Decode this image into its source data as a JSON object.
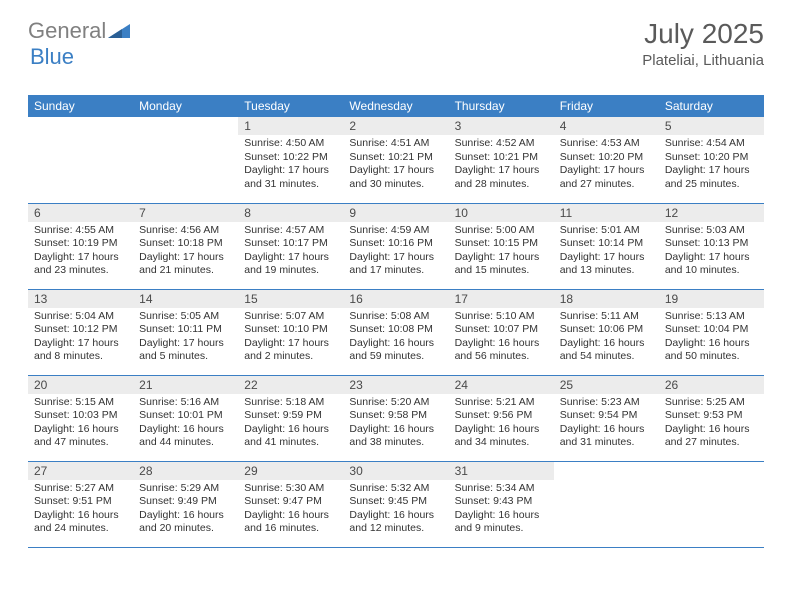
{
  "logo": {
    "text1": "General",
    "text2": "Blue"
  },
  "title": "July 2025",
  "location": "Plateliai, Lithuania",
  "colors": {
    "header_bg": "#3b7fc4",
    "daynum_bg": "#ececec",
    "border": "#3b7fc4",
    "logo_gray": "#808080",
    "logo_blue": "#3b7fc4"
  },
  "day_headers": [
    "Sunday",
    "Monday",
    "Tuesday",
    "Wednesday",
    "Thursday",
    "Friday",
    "Saturday"
  ],
  "weeks": [
    [
      null,
      null,
      {
        "n": "1",
        "sr": "4:50 AM",
        "ss": "10:22 PM",
        "dl": "17 hours and 31 minutes."
      },
      {
        "n": "2",
        "sr": "4:51 AM",
        "ss": "10:21 PM",
        "dl": "17 hours and 30 minutes."
      },
      {
        "n": "3",
        "sr": "4:52 AM",
        "ss": "10:21 PM",
        "dl": "17 hours and 28 minutes."
      },
      {
        "n": "4",
        "sr": "4:53 AM",
        "ss": "10:20 PM",
        "dl": "17 hours and 27 minutes."
      },
      {
        "n": "5",
        "sr": "4:54 AM",
        "ss": "10:20 PM",
        "dl": "17 hours and 25 minutes."
      }
    ],
    [
      {
        "n": "6",
        "sr": "4:55 AM",
        "ss": "10:19 PM",
        "dl": "17 hours and 23 minutes."
      },
      {
        "n": "7",
        "sr": "4:56 AM",
        "ss": "10:18 PM",
        "dl": "17 hours and 21 minutes."
      },
      {
        "n": "8",
        "sr": "4:57 AM",
        "ss": "10:17 PM",
        "dl": "17 hours and 19 minutes."
      },
      {
        "n": "9",
        "sr": "4:59 AM",
        "ss": "10:16 PM",
        "dl": "17 hours and 17 minutes."
      },
      {
        "n": "10",
        "sr": "5:00 AM",
        "ss": "10:15 PM",
        "dl": "17 hours and 15 minutes."
      },
      {
        "n": "11",
        "sr": "5:01 AM",
        "ss": "10:14 PM",
        "dl": "17 hours and 13 minutes."
      },
      {
        "n": "12",
        "sr": "5:03 AM",
        "ss": "10:13 PM",
        "dl": "17 hours and 10 minutes."
      }
    ],
    [
      {
        "n": "13",
        "sr": "5:04 AM",
        "ss": "10:12 PM",
        "dl": "17 hours and 8 minutes."
      },
      {
        "n": "14",
        "sr": "5:05 AM",
        "ss": "10:11 PM",
        "dl": "17 hours and 5 minutes."
      },
      {
        "n": "15",
        "sr": "5:07 AM",
        "ss": "10:10 PM",
        "dl": "17 hours and 2 minutes."
      },
      {
        "n": "16",
        "sr": "5:08 AM",
        "ss": "10:08 PM",
        "dl": "16 hours and 59 minutes."
      },
      {
        "n": "17",
        "sr": "5:10 AM",
        "ss": "10:07 PM",
        "dl": "16 hours and 56 minutes."
      },
      {
        "n": "18",
        "sr": "5:11 AM",
        "ss": "10:06 PM",
        "dl": "16 hours and 54 minutes."
      },
      {
        "n": "19",
        "sr": "5:13 AM",
        "ss": "10:04 PM",
        "dl": "16 hours and 50 minutes."
      }
    ],
    [
      {
        "n": "20",
        "sr": "5:15 AM",
        "ss": "10:03 PM",
        "dl": "16 hours and 47 minutes."
      },
      {
        "n": "21",
        "sr": "5:16 AM",
        "ss": "10:01 PM",
        "dl": "16 hours and 44 minutes."
      },
      {
        "n": "22",
        "sr": "5:18 AM",
        "ss": "9:59 PM",
        "dl": "16 hours and 41 minutes."
      },
      {
        "n": "23",
        "sr": "5:20 AM",
        "ss": "9:58 PM",
        "dl": "16 hours and 38 minutes."
      },
      {
        "n": "24",
        "sr": "5:21 AM",
        "ss": "9:56 PM",
        "dl": "16 hours and 34 minutes."
      },
      {
        "n": "25",
        "sr": "5:23 AM",
        "ss": "9:54 PM",
        "dl": "16 hours and 31 minutes."
      },
      {
        "n": "26",
        "sr": "5:25 AM",
        "ss": "9:53 PM",
        "dl": "16 hours and 27 minutes."
      }
    ],
    [
      {
        "n": "27",
        "sr": "5:27 AM",
        "ss": "9:51 PM",
        "dl": "16 hours and 24 minutes."
      },
      {
        "n": "28",
        "sr": "5:29 AM",
        "ss": "9:49 PM",
        "dl": "16 hours and 20 minutes."
      },
      {
        "n": "29",
        "sr": "5:30 AM",
        "ss": "9:47 PM",
        "dl": "16 hours and 16 minutes."
      },
      {
        "n": "30",
        "sr": "5:32 AM",
        "ss": "9:45 PM",
        "dl": "16 hours and 12 minutes."
      },
      {
        "n": "31",
        "sr": "5:34 AM",
        "ss": "9:43 PM",
        "dl": "16 hours and 9 minutes."
      },
      null,
      null
    ]
  ],
  "labels": {
    "sunrise": "Sunrise:",
    "sunset": "Sunset:",
    "daylight": "Daylight:"
  }
}
